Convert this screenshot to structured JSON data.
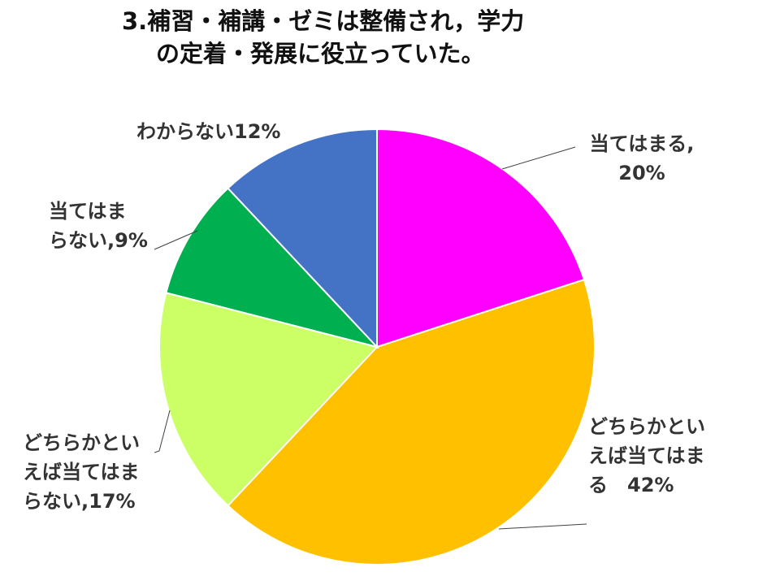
{
  "title": {
    "line1": "3.補習・補講・ゼミは整備され，学力",
    "line2": "の定着・発展に役立っていた。"
  },
  "chart_data": {
    "type": "pie",
    "title": "3.補習・補講・ゼミは整備され，学力の定着・発展に役立っていた。",
    "slices": [
      {
        "name": "当てはまる",
        "value": 20,
        "color": "#FF00FF",
        "label_lines": [
          "当てはまる,",
          "20%"
        ]
      },
      {
        "name": "どちらかといえば当てはまる",
        "value": 42,
        "color": "#FFC000",
        "label_lines": [
          "どちらかとい",
          "えば当てはま",
          "る　42%"
        ]
      },
      {
        "name": "どちらかといえば当てはまらない",
        "value": 17,
        "color": "#CCFF66",
        "label_lines": [
          "どちらかとい",
          "えば当てはま",
          "らない,17%"
        ]
      },
      {
        "name": "当てはまらない",
        "value": 9,
        "color": "#00B050",
        "label_lines": [
          "当てはま",
          "らない,9%"
        ]
      },
      {
        "name": "わからない",
        "value": 12,
        "color": "#4472C4",
        "label_lines": [
          "わからない12%"
        ]
      }
    ]
  }
}
